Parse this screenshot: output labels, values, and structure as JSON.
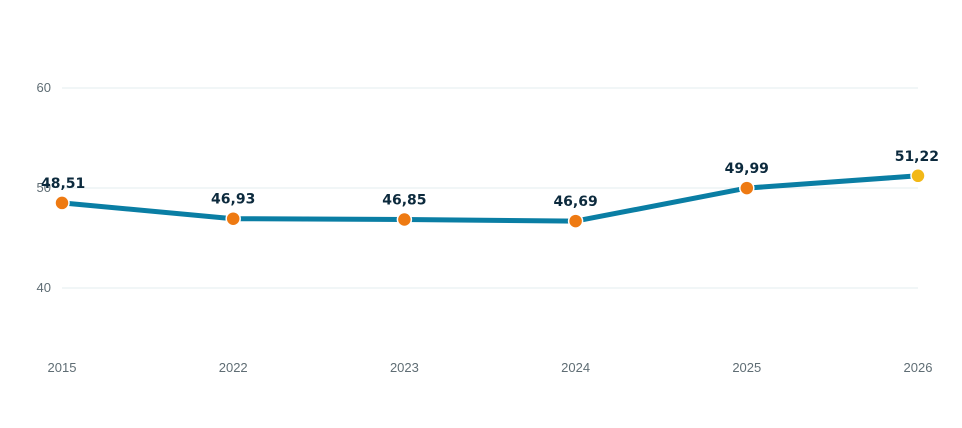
{
  "chart_data": {
    "type": "line",
    "categories": [
      "2015",
      "2022",
      "2023",
      "2024",
      "2025",
      "2026"
    ],
    "series": [
      {
        "values": [
          48.51,
          46.93,
          46.85,
          46.69,
          49.99,
          51.22
        ]
      }
    ],
    "data_labels": [
      "48,51",
      "46,93",
      "46,85",
      "46,69",
      "49,99",
      "51,22"
    ],
    "y_ticks": [
      40,
      50,
      60
    ],
    "y_tick_labels": [
      "40",
      "50",
      "60"
    ],
    "ylim": [
      35,
      62
    ],
    "grid": true,
    "legend": "none",
    "colors": {
      "line": "#0a7ea4",
      "point": "#ee7a12",
      "last_point": "#f2b817",
      "grid": "#e3ecef",
      "tick_text": "#5f6d74",
      "label_text": "#0c2a3d"
    }
  }
}
